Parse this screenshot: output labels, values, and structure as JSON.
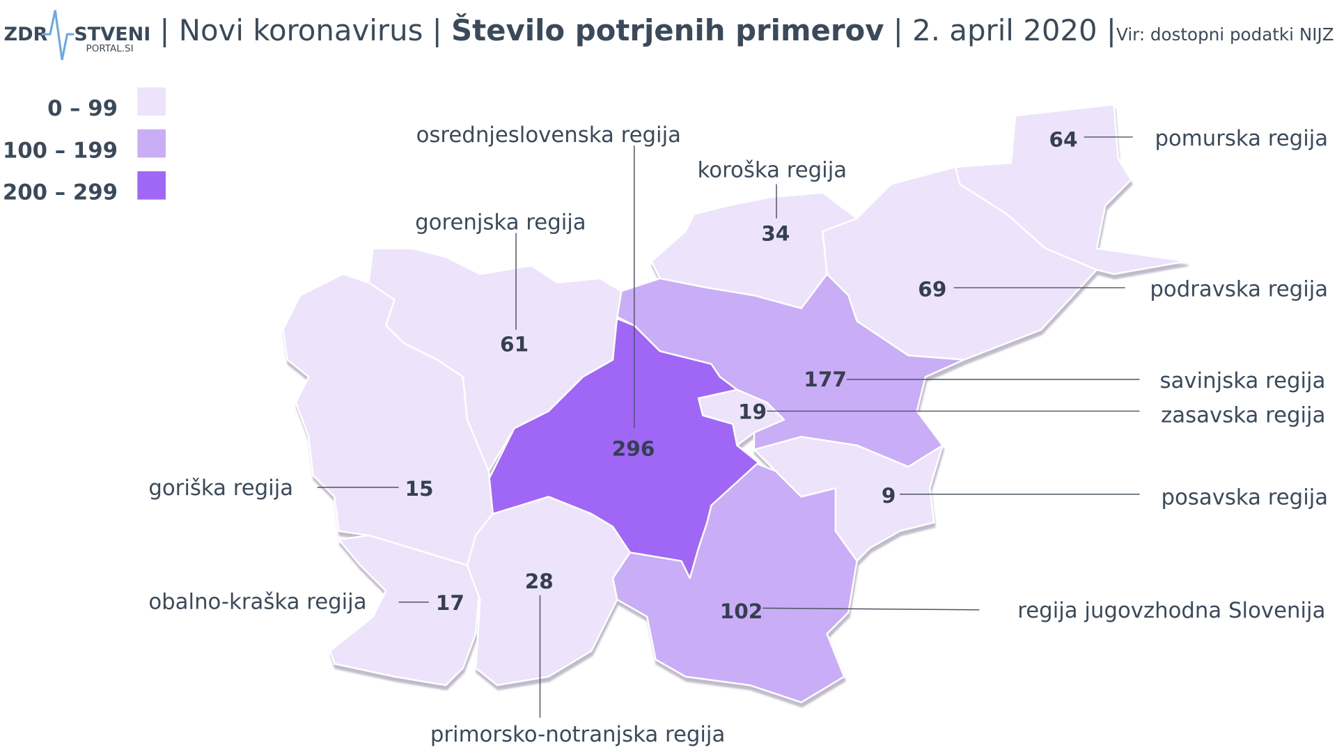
{
  "header": {
    "logo": {
      "left": "ZDR",
      "right": "STVENI",
      "sub": "PORTAL.SI"
    },
    "topic": "Novi koronavirus",
    "title": "Število potrjenih primerov",
    "date": "2. april 2020",
    "source": "Vir: dostopni podatki NIJZ"
  },
  "legend": [
    {
      "value": [
        0,
        99
      ],
      "label": "0 – 99",
      "color": "#ede4fb"
    },
    {
      "value": [
        100,
        199
      ],
      "label": "100 – 199",
      "color": "#c9adf7"
    },
    {
      "value": [
        200,
        299
      ],
      "label": "200  – 299",
      "color": "#a066f6"
    }
  ],
  "regions": [
    {
      "name": "pomurska regija",
      "value": 64
    },
    {
      "name": "podravska regija",
      "value": 69
    },
    {
      "name": "koroška regija",
      "value": 34
    },
    {
      "name": "savinjska regija",
      "value": 177
    },
    {
      "name": "zasavska regija",
      "value": 19
    },
    {
      "name": "posavska regija",
      "value": 9
    },
    {
      "name": "regija jugovzhodna Slovenija",
      "value": 102
    },
    {
      "name": "osrednjeslovenska regija",
      "value": 296
    },
    {
      "name": "gorenjska regija",
      "value": 61
    },
    {
      "name": "goriška regija",
      "value": 15
    },
    {
      "name": "obalno-kraška regija",
      "value": 17
    },
    {
      "name": "primorsko-notranjska regija",
      "value": 28
    }
  ]
}
